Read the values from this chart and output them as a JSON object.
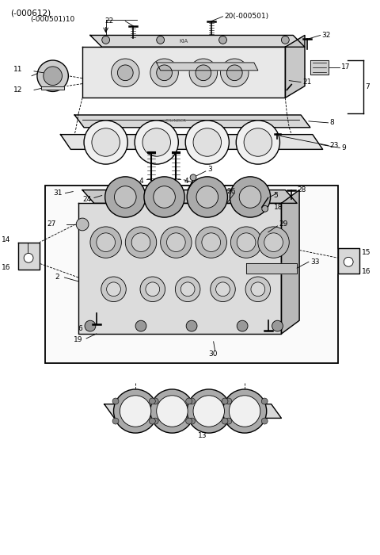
{
  "title": "(-000612)",
  "bg_color": "#ffffff",
  "line_color": "#000000",
  "fig_width": 4.8,
  "fig_height": 7.0,
  "dpi": 100
}
